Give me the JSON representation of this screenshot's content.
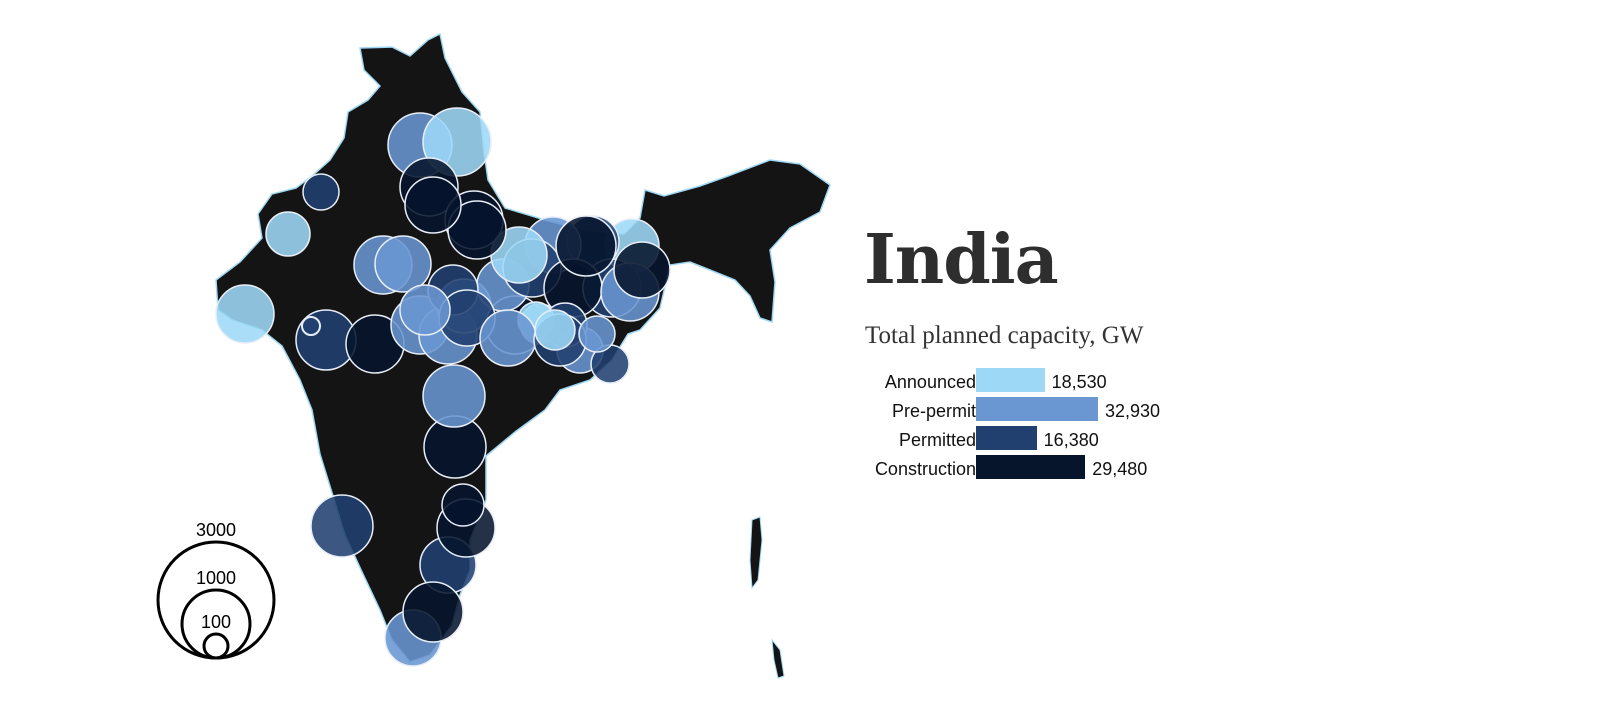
{
  "country": "India",
  "subtitle": "Total planned capacity, GW",
  "colors": {
    "land": "#141414",
    "coast": "#9fd8f5",
    "announced": "#9dd8f7",
    "pre_permit": "#6a96d2",
    "permitted": "#21406f",
    "construction": "#06142c",
    "bubble_stroke": "#e8eef7"
  },
  "chart_data": {
    "type": "bar",
    "categories": [
      "Announced",
      "Pre-permit",
      "Permitted",
      "Construction"
    ],
    "values": [
      18530,
      32930,
      16380,
      29480
    ],
    "value_labels": [
      "18,530",
      "32,930",
      "16,380",
      "29,480"
    ],
    "colors": [
      "#9dd8f7",
      "#6a96d2",
      "#21406f",
      "#06142c"
    ]
  },
  "size_legend": {
    "labels": [
      "3000",
      "1000",
      "100"
    ],
    "values": [
      3000,
      1000,
      100
    ]
  },
  "bubbles": [
    {
      "status": "pre_permit"
    },
    {
      "status": "announced"
    },
    {
      "status": "construction"
    },
    {
      "status": "construction"
    },
    {
      "status": "permitted"
    },
    {
      "status": "announced"
    },
    {
      "status": "announced"
    },
    {
      "status": "pre_permit"
    },
    {
      "status": "pre_permit"
    },
    {
      "status": "permitted"
    },
    {
      "status": "construction"
    },
    {
      "status": "construction"
    },
    {
      "status": "pre_permit"
    },
    {
      "status": "permitted"
    },
    {
      "status": "permitted"
    },
    {
      "status": "pre_permit"
    },
    {
      "status": "pre_permit"
    },
    {
      "status": "construction"
    },
    {
      "status": "pre_permit"
    },
    {
      "status": "construction"
    },
    {
      "status": "pre_permit"
    },
    {
      "status": "announced"
    },
    {
      "status": "permitted"
    },
    {
      "status": "pre_permit"
    },
    {
      "status": "construction"
    },
    {
      "status": "pre_permit"
    },
    {
      "status": "permitted"
    },
    {
      "status": "announced"
    },
    {
      "status": "permitted"
    },
    {
      "status": "construction"
    },
    {
      "status": "announced"
    },
    {
      "status": "pre_permit"
    },
    {
      "status": "pre_permit"
    },
    {
      "status": "construction"
    },
    {
      "status": "permitted"
    },
    {
      "status": "announced"
    },
    {
      "status": "construction"
    },
    {
      "status": "permitted"
    },
    {
      "status": "permitted"
    },
    {
      "status": "construction"
    },
    {
      "status": "construction"
    },
    {
      "status": "permitted"
    },
    {
      "status": "construction"
    },
    {
      "status": "pre_permit"
    },
    {
      "status": "permitted"
    },
    {
      "status": "pre_permit"
    },
    {
      "status": "announced"
    },
    {
      "status": "pre_permit"
    }
  ]
}
